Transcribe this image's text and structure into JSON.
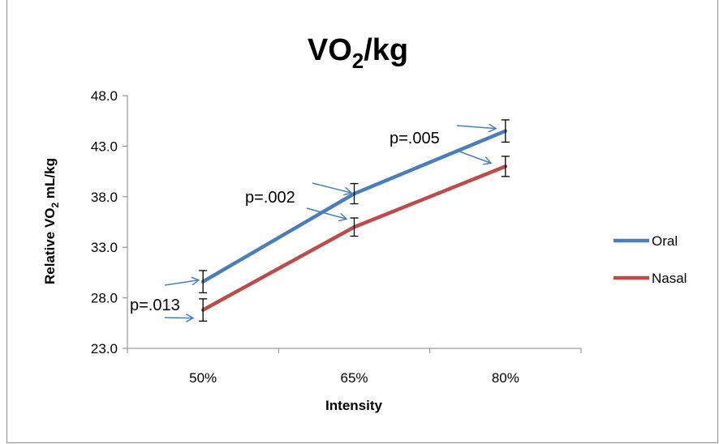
{
  "chart_data": {
    "type": "line",
    "title_main": "VO",
    "title_sub": "2",
    "title_rest": "/kg",
    "xlabel": "Intensity",
    "ylabel_main": "Relative VO",
    "ylabel_sub": "2",
    "ylabel_rest": " mL/kg",
    "categories": [
      "50%",
      "65%",
      "80%"
    ],
    "ylim": [
      23.0,
      48.0
    ],
    "yticks": [
      "23.0",
      "28.0",
      "33.0",
      "38.0",
      "43.0",
      "48.0"
    ],
    "grid": false,
    "legend_position": "right",
    "series": [
      {
        "name": "Oral",
        "color": "#4a7ebb",
        "values": [
          29.6,
          38.3,
          44.5
        ],
        "errors": [
          1.1,
          1.0,
          1.1
        ]
      },
      {
        "name": "Nasal",
        "color": "#be4b48",
        "values": [
          26.8,
          35.0,
          41.0
        ],
        "errors": [
          1.1,
          0.9,
          1.0
        ]
      }
    ],
    "annotations": [
      {
        "text": "p=.013",
        "category": "50%"
      },
      {
        "text": "p=.002",
        "category": "65%"
      },
      {
        "text": "p=.005",
        "category": "80%"
      }
    ]
  }
}
